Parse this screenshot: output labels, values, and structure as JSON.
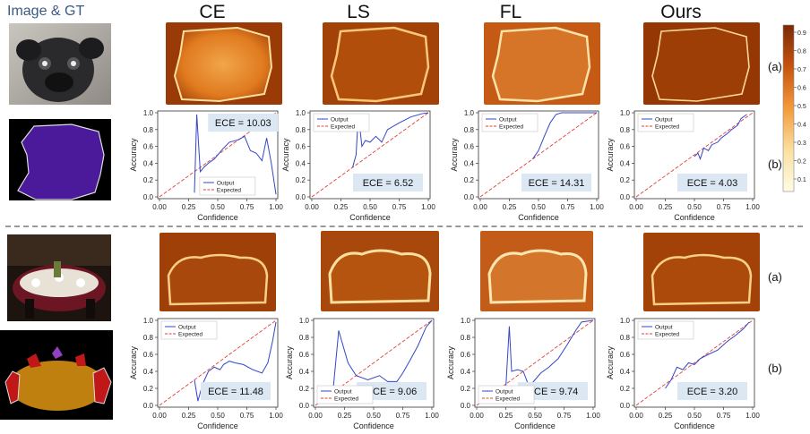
{
  "header": {
    "gt_label": "Image & GT",
    "methods": [
      "CE",
      "LS",
      "FL",
      "Ours"
    ]
  },
  "row_labels": {
    "heatmap": "(a)",
    "reliability": "(b)"
  },
  "colorbar": {
    "ticks": [
      "0.9",
      "0.8",
      "0.7",
      "0.6",
      "0.5",
      "0.4",
      "0.3",
      "0.2",
      "0.1"
    ],
    "colors": [
      "#7a2a05",
      "#c65310",
      "#f39a3b",
      "#fbdfa0",
      "#fefce6"
    ]
  },
  "icons": {
    "pug_photo": "pug-photo-icon",
    "pug_mask": "pug-mask-icon",
    "dining_photo": "dining-photo-icon",
    "dining_mask": "dining-mask-icon"
  },
  "chart_data": [
    {
      "type": "line",
      "panel": "top-CE",
      "ece": "ECE = 10.03",
      "legend": [
        "Output",
        "Expected"
      ],
      "xlabel": "Confidence",
      "ylabel": "Accuracy",
      "xticks": [
        "0.00",
        "0.25",
        "0.50",
        "0.75",
        "1.00"
      ],
      "yticks": [
        "0.0",
        "0.2",
        "0.4",
        "0.6",
        "0.8",
        "1.0"
      ],
      "output": [
        [
          0.3,
          0.05
        ],
        [
          0.32,
          0.98
        ],
        [
          0.35,
          0.3
        ],
        [
          0.38,
          0.35
        ],
        [
          0.42,
          0.4
        ],
        [
          0.47,
          0.45
        ],
        [
          0.55,
          0.58
        ],
        [
          0.6,
          0.65
        ],
        [
          0.68,
          0.68
        ],
        [
          0.73,
          0.72
        ],
        [
          0.78,
          0.55
        ],
        [
          0.83,
          0.52
        ],
        [
          0.88,
          0.43
        ],
        [
          0.92,
          0.7
        ],
        [
          0.96,
          0.4
        ],
        [
          1.0,
          0.03
        ]
      ]
    },
    {
      "type": "line",
      "panel": "top-LS",
      "ece": "ECE = 6.52",
      "legend": [
        "Output",
        "Expected"
      ],
      "xlabel": "Confidence",
      "ylabel": "Accuracy",
      "xticks": [
        "0.00",
        "0.25",
        "0.50",
        "0.75",
        "1.00"
      ],
      "yticks": [
        "0.0",
        "0.2",
        "0.4",
        "0.6",
        "0.8",
        "1.0"
      ],
      "output": [
        [
          0.35,
          0.35
        ],
        [
          0.38,
          0.5
        ],
        [
          0.4,
          0.98
        ],
        [
          0.43,
          0.6
        ],
        [
          0.46,
          0.67
        ],
        [
          0.5,
          0.65
        ],
        [
          0.55,
          0.72
        ],
        [
          0.6,
          0.65
        ],
        [
          0.65,
          0.8
        ],
        [
          0.75,
          0.88
        ],
        [
          0.85,
          0.95
        ],
        [
          0.95,
          0.99
        ],
        [
          1.0,
          1.0
        ]
      ]
    },
    {
      "type": "line",
      "panel": "top-FL",
      "ece": "ECE = 14.31",
      "legend": [
        "Output",
        "Expected"
      ],
      "xlabel": "Confidence",
      "ylabel": "Accuracy",
      "xticks": [
        "0.00",
        "0.25",
        "0.50",
        "0.75",
        "1.00"
      ],
      "yticks": [
        "0.0",
        "0.2",
        "0.4",
        "0.6",
        "0.8",
        "1.0"
      ],
      "output": [
        [
          0.45,
          0.45
        ],
        [
          0.5,
          0.55
        ],
        [
          0.55,
          0.72
        ],
        [
          0.6,
          0.88
        ],
        [
          0.65,
          0.98
        ],
        [
          0.7,
          1.0
        ],
        [
          1.0,
          1.0
        ]
      ]
    },
    {
      "type": "line",
      "panel": "top-Ours",
      "ece": "ECE = 4.03",
      "legend": [
        "Output",
        "Expected"
      ],
      "xlabel": "Confidence",
      "ylabel": "Accuracy",
      "xticks": [
        "0.00",
        "0.25",
        "0.50",
        "0.75",
        "1.00"
      ],
      "yticks": [
        "0.0",
        "0.2",
        "0.4",
        "0.6",
        "0.8",
        "1.0"
      ],
      "output": [
        [
          0.5,
          0.48
        ],
        [
          0.53,
          0.52
        ],
        [
          0.55,
          0.45
        ],
        [
          0.58,
          0.58
        ],
        [
          0.62,
          0.55
        ],
        [
          0.65,
          0.62
        ],
        [
          0.7,
          0.65
        ],
        [
          0.73,
          0.7
        ],
        [
          0.78,
          0.75
        ],
        [
          0.82,
          0.8
        ],
        [
          0.87,
          0.85
        ],
        [
          0.9,
          0.93
        ],
        [
          0.95,
          0.98
        ]
      ]
    },
    {
      "type": "line",
      "panel": "bottom-CE",
      "ece": "ECE = 11.48",
      "legend": [
        "Output",
        "Expected"
      ],
      "xlabel": "Confidence",
      "ylabel": "Accuracy",
      "xticks": [
        "0.00",
        "0.25",
        "0.50",
        "0.75",
        "1.00"
      ],
      "yticks": [
        "0.0",
        "0.2",
        "0.4",
        "0.6",
        "0.8",
        "1.0"
      ],
      "output": [
        [
          0.3,
          0.3
        ],
        [
          0.33,
          0.05
        ],
        [
          0.37,
          0.25
        ],
        [
          0.42,
          0.4
        ],
        [
          0.47,
          0.45
        ],
        [
          0.52,
          0.42
        ],
        [
          0.55,
          0.48
        ],
        [
          0.6,
          0.52
        ],
        [
          0.65,
          0.5
        ],
        [
          0.72,
          0.48
        ],
        [
          0.8,
          0.42
        ],
        [
          0.88,
          0.38
        ],
        [
          0.93,
          0.5
        ],
        [
          0.97,
          0.75
        ],
        [
          1.0,
          0.98
        ]
      ]
    },
    {
      "type": "line",
      "panel": "bottom-LS",
      "ece": "ECE = 9.06",
      "legend": [
        "Output",
        "Expected"
      ],
      "xlabel": "Confidence",
      "ylabel": "Accuracy",
      "xticks": [
        "0.00",
        "0.25",
        "0.50",
        "0.75",
        "1.00"
      ],
      "yticks": [
        "0.0",
        "0.2",
        "0.4",
        "0.6",
        "0.8",
        "1.0"
      ],
      "output": [
        [
          0.15,
          0.15
        ],
        [
          0.2,
          0.88
        ],
        [
          0.28,
          0.5
        ],
        [
          0.35,
          0.35
        ],
        [
          0.45,
          0.3
        ],
        [
          0.55,
          0.35
        ],
        [
          0.62,
          0.28
        ],
        [
          0.7,
          0.28
        ],
        [
          0.75,
          0.38
        ],
        [
          0.8,
          0.5
        ],
        [
          0.88,
          0.7
        ],
        [
          0.95,
          0.92
        ],
        [
          1.0,
          1.0
        ]
      ]
    },
    {
      "type": "line",
      "panel": "bottom-FL",
      "ece": "ECE = 9.74",
      "legend": [
        "Output",
        "Expected"
      ],
      "xlabel": "Confidence",
      "ylabel": "Accuracy",
      "xticks": [
        "0.00",
        "0.25",
        "0.50",
        "0.75",
        "1.00"
      ],
      "yticks": [
        "0.0",
        "0.2",
        "0.4",
        "0.6",
        "0.8",
        "1.0"
      ],
      "output": [
        [
          0.25,
          0.2
        ],
        [
          0.28,
          0.93
        ],
        [
          0.3,
          0.4
        ],
        [
          0.35,
          0.42
        ],
        [
          0.4,
          0.4
        ],
        [
          0.45,
          0.22
        ],
        [
          0.5,
          0.3
        ],
        [
          0.55,
          0.38
        ],
        [
          0.62,
          0.45
        ],
        [
          0.7,
          0.55
        ],
        [
          0.78,
          0.72
        ],
        [
          0.85,
          0.88
        ],
        [
          0.9,
          0.98
        ],
        [
          1.0,
          1.0
        ]
      ]
    },
    {
      "type": "line",
      "panel": "bottom-Ours",
      "ece": "ECE = 3.20",
      "legend": [
        "Output",
        "Expected"
      ],
      "xlabel": "Confidence",
      "ylabel": "Accuracy",
      "xticks": [
        "0.00",
        "0.25",
        "0.50",
        "0.75",
        "1.00"
      ],
      "yticks": [
        "0.0",
        "0.2",
        "0.4",
        "0.6",
        "0.8",
        "1.0"
      ],
      "output": [
        [
          0.25,
          0.2
        ],
        [
          0.3,
          0.3
        ],
        [
          0.35,
          0.45
        ],
        [
          0.4,
          0.42
        ],
        [
          0.45,
          0.5
        ],
        [
          0.5,
          0.48
        ],
        [
          0.55,
          0.55
        ],
        [
          0.62,
          0.6
        ],
        [
          0.7,
          0.65
        ],
        [
          0.78,
          0.75
        ],
        [
          0.85,
          0.82
        ],
        [
          0.92,
          0.9
        ],
        [
          0.97,
          0.98
        ]
      ]
    }
  ]
}
